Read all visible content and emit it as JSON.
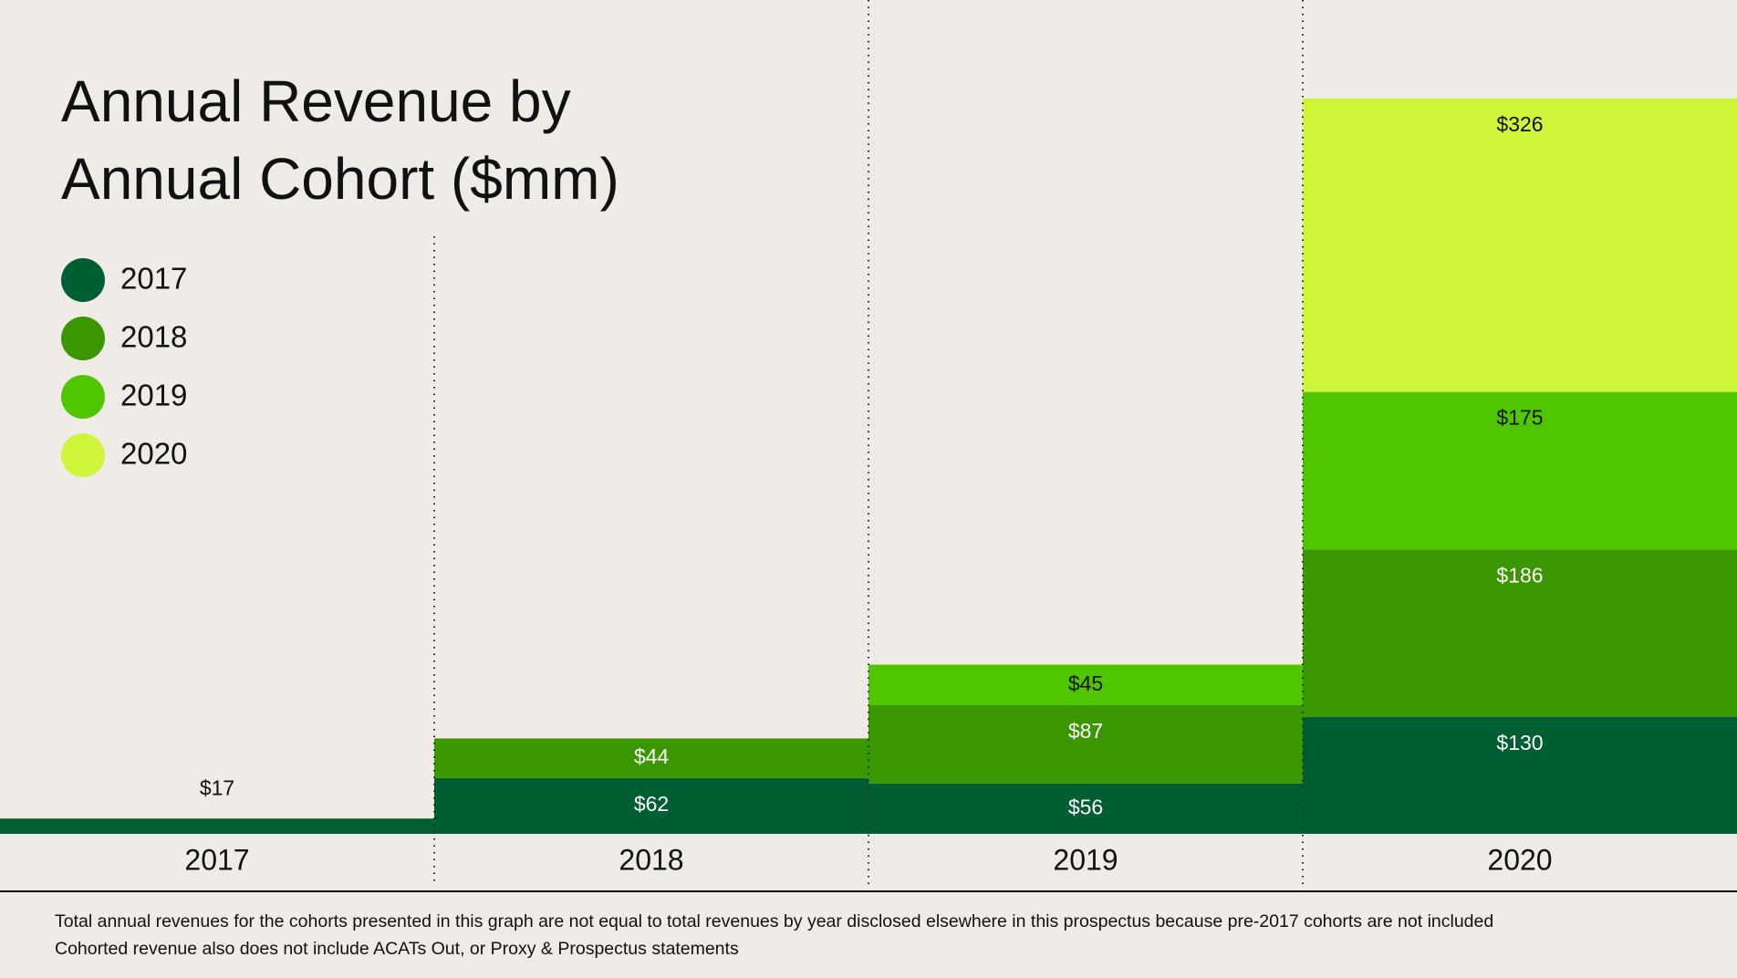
{
  "chart_data": {
    "type": "stacked-bar",
    "title": [
      "Annual Revenue by",
      "Annual Cohort ($mm)"
    ],
    "categories": [
      "2017",
      "2018",
      "2019",
      "2020"
    ],
    "series": [
      {
        "name": "2017",
        "color": "#005e32",
        "label_color": "#ffffff",
        "values": [
          17,
          62,
          56,
          130
        ],
        "value_labels": [
          "$17",
          "$62",
          "$56",
          "$130"
        ]
      },
      {
        "name": "2018",
        "color": "#3a9700",
        "label_color": "#ffffff",
        "values": [
          null,
          44,
          87,
          186
        ],
        "value_labels": [
          null,
          "$44",
          "$87",
          "$186"
        ]
      },
      {
        "name": "2019",
        "color": "#4fc600",
        "label_color": "#111111",
        "values": [
          null,
          null,
          45,
          175
        ],
        "value_labels": [
          null,
          null,
          "$45",
          "$175"
        ]
      },
      {
        "name": "2020",
        "color": "#cdf53a",
        "label_color": "#111111",
        "values": [
          null,
          null,
          null,
          326
        ],
        "value_labels": [
          null,
          null,
          null,
          "$326"
        ]
      }
    ],
    "notes": [
      "Total annual revenues for the cohorts presented in this graph are not equal to total revenues by year disclosed elsewhere in this prospectus because pre-2017 cohorts are not included",
      "Cohorted revenue also does not include ACATs Out, or Proxy & Prospectus statements"
    ]
  }
}
